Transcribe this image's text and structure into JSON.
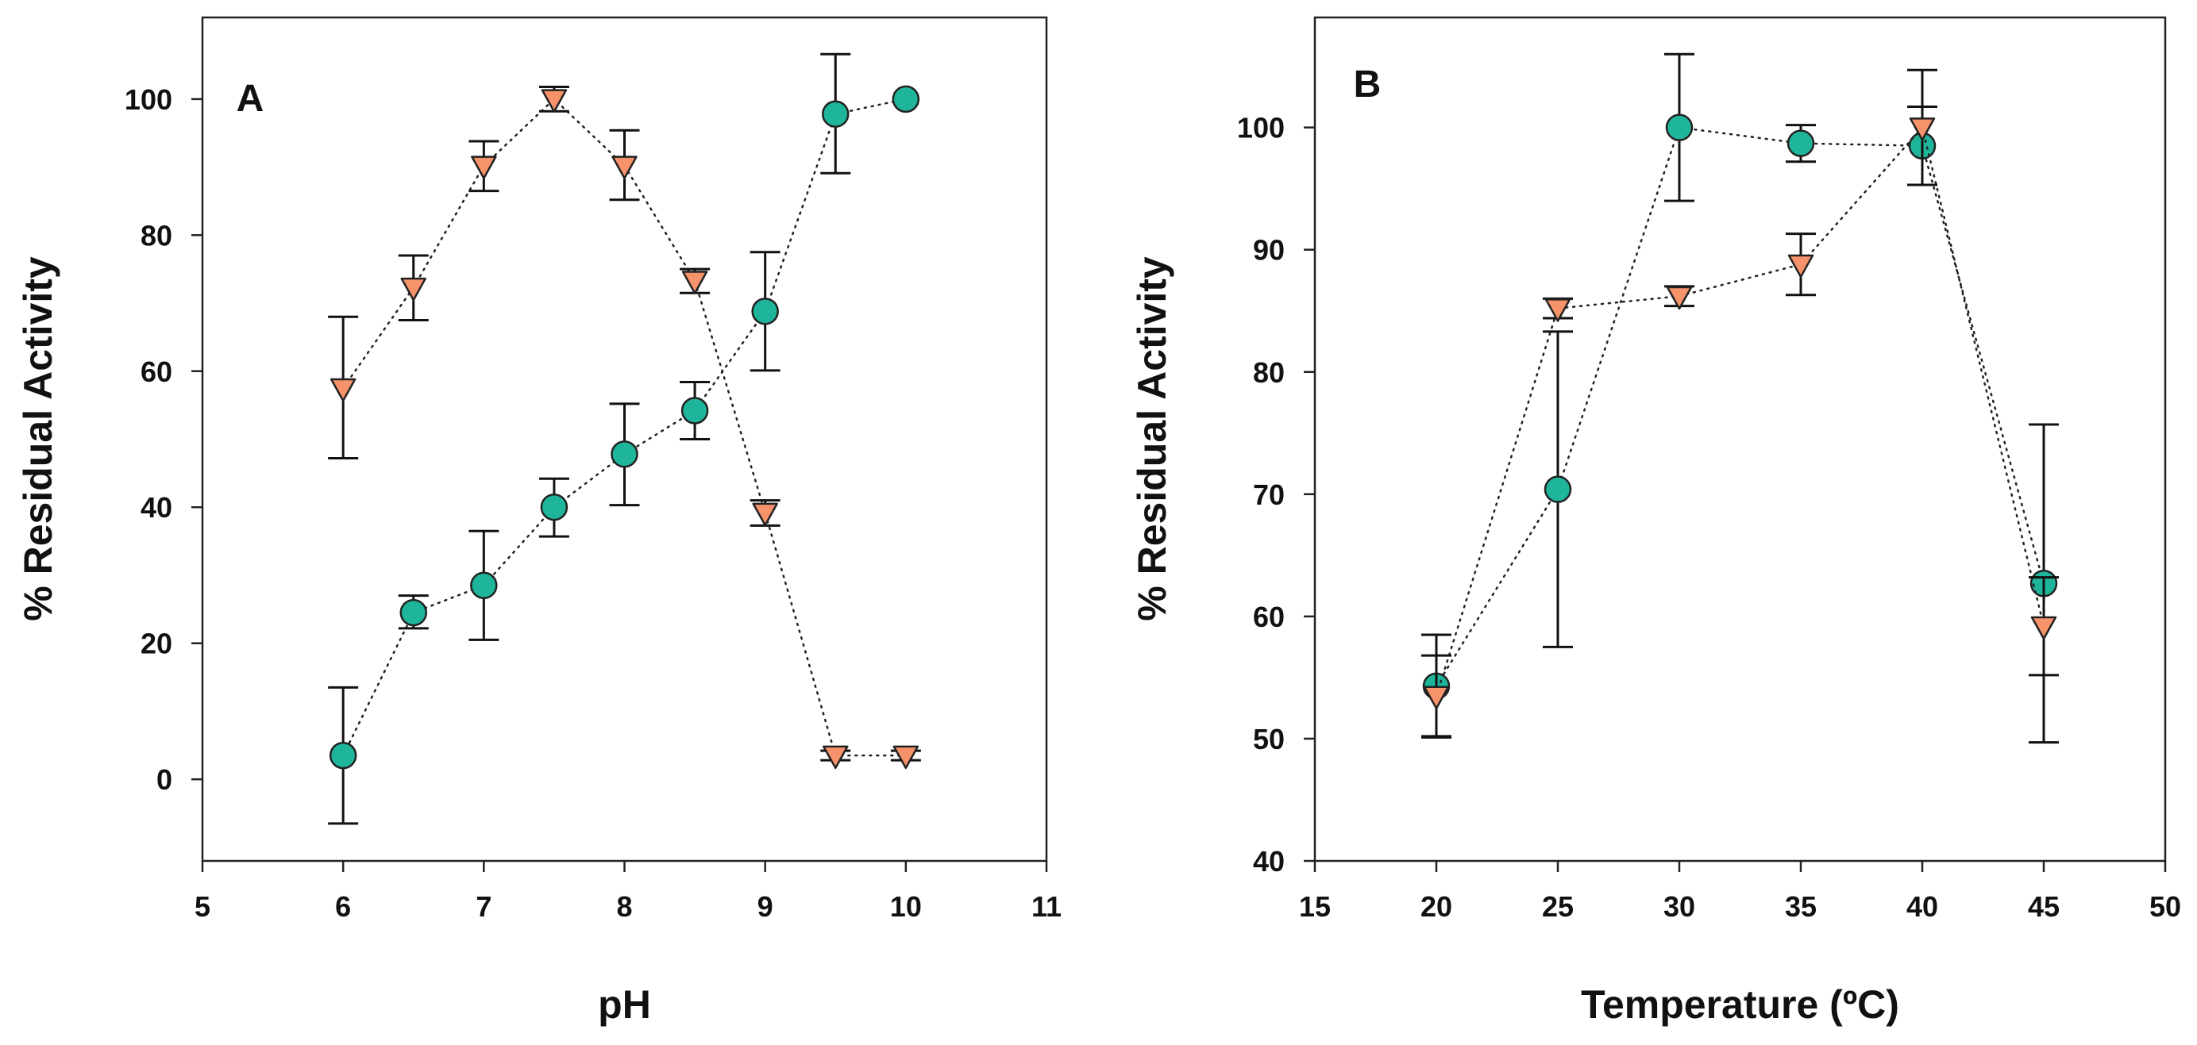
{
  "colors": {
    "circle_fill": "#1fb59a",
    "triangle_fill": "#f7936b",
    "ink": "#222222"
  },
  "chart_data": [
    {
      "type": "scatter",
      "panel_label": "A",
      "xlabel": "pH",
      "ylabel": "% Residual Activity",
      "xlim": [
        5,
        11
      ],
      "ylim": [
        -12,
        112
      ],
      "xticks": [
        5,
        6,
        7,
        8,
        9,
        10,
        11
      ],
      "yticks": [
        0,
        20,
        40,
        60,
        80,
        100
      ],
      "grid": false,
      "series": [
        {
          "marker": "circle",
          "points": [
            {
              "x": 6,
              "y": 3.5,
              "lo": -6.5,
              "hi": 13.5
            },
            {
              "x": 6.5,
              "y": 24.5,
              "lo": 22.2,
              "hi": 27.0
            },
            {
              "x": 7,
              "y": 28.5,
              "lo": 20.5,
              "hi": 36.5
            },
            {
              "x": 7.5,
              "y": 40,
              "lo": 35.7,
              "hi": 44.2
            },
            {
              "x": 8,
              "y": 47.8,
              "lo": 40.3,
              "hi": 55.2
            },
            {
              "x": 8.5,
              "y": 54.2,
              "lo": 50.0,
              "hi": 58.4
            },
            {
              "x": 9,
              "y": 68.8,
              "lo": 60.1,
              "hi": 77.5
            },
            {
              "x": 9.5,
              "y": 97.8,
              "lo": 89.1,
              "hi": 106.6
            },
            {
              "x": 10,
              "y": 100
            }
          ]
        },
        {
          "marker": "triangle-down",
          "points": [
            {
              "x": 6,
              "y": 57.5,
              "lo": 47.2,
              "hi": 68.0
            },
            {
              "x": 6.5,
              "y": 72.3,
              "lo": 67.5,
              "hi": 77.0
            },
            {
              "x": 7,
              "y": 90.2,
              "lo": 86.5,
              "hi": 93.8
            },
            {
              "x": 7.5,
              "y": 100,
              "lo": 98.2,
              "hi": 101.8
            },
            {
              "x": 8,
              "y": 90.2,
              "lo": 85.2,
              "hi": 95.4
            },
            {
              "x": 8.5,
              "y": 73.3,
              "lo": 71.5,
              "hi": 75.0
            },
            {
              "x": 9,
              "y": 39.2,
              "lo": 37.3,
              "hi": 41.0
            },
            {
              "x": 9.5,
              "y": 3.5,
              "lo": 2.8,
              "hi": 4.2
            },
            {
              "x": 10,
              "y": 3.5,
              "lo": 2.8,
              "hi": 4.2
            }
          ]
        }
      ]
    },
    {
      "type": "scatter",
      "panel_label": "B",
      "xlabel": "Temperature (ºC)",
      "ylabel": "% Residual Activity",
      "xlim": [
        15,
        50
      ],
      "ylim": [
        40,
        109
      ],
      "xticks": [
        15,
        20,
        25,
        30,
        35,
        40,
        45,
        50
      ],
      "yticks": [
        40,
        50,
        60,
        70,
        80,
        90,
        100
      ],
      "grid": false,
      "series": [
        {
          "marker": "circle",
          "points": [
            {
              "x": 20,
              "y": 54.3,
              "lo": 50.1,
              "hi": 58.5
            },
            {
              "x": 25,
              "y": 70.4,
              "lo": 57.5,
              "hi": 83.3
            },
            {
              "x": 30,
              "y": 100,
              "lo": 94.0,
              "hi": 106.0
            },
            {
              "x": 35,
              "y": 98.7,
              "lo": 97.2,
              "hi": 100.2
            },
            {
              "x": 40,
              "y": 98.5,
              "lo": 95.3,
              "hi": 101.7
            },
            {
              "x": 45,
              "y": 62.7,
              "lo": 49.7,
              "hi": 75.7
            }
          ]
        },
        {
          "marker": "triangle-down",
          "points": [
            {
              "x": 20,
              "y": 53.5,
              "lo": 50.2,
              "hi": 56.8
            },
            {
              "x": 25,
              "y": 85.2,
              "lo": 84.4,
              "hi": 86.0
            },
            {
              "x": 30,
              "y": 86.2,
              "lo": 85.4,
              "hi": 87.0
            },
            {
              "x": 35,
              "y": 88.8,
              "lo": 86.3,
              "hi": 91.3
            },
            {
              "x": 40,
              "y": 100,
              "lo": 95.3,
              "hi": 104.7
            },
            {
              "x": 45,
              "y": 59.2,
              "lo": 55.2,
              "hi": 63.2
            }
          ]
        }
      ]
    }
  ]
}
